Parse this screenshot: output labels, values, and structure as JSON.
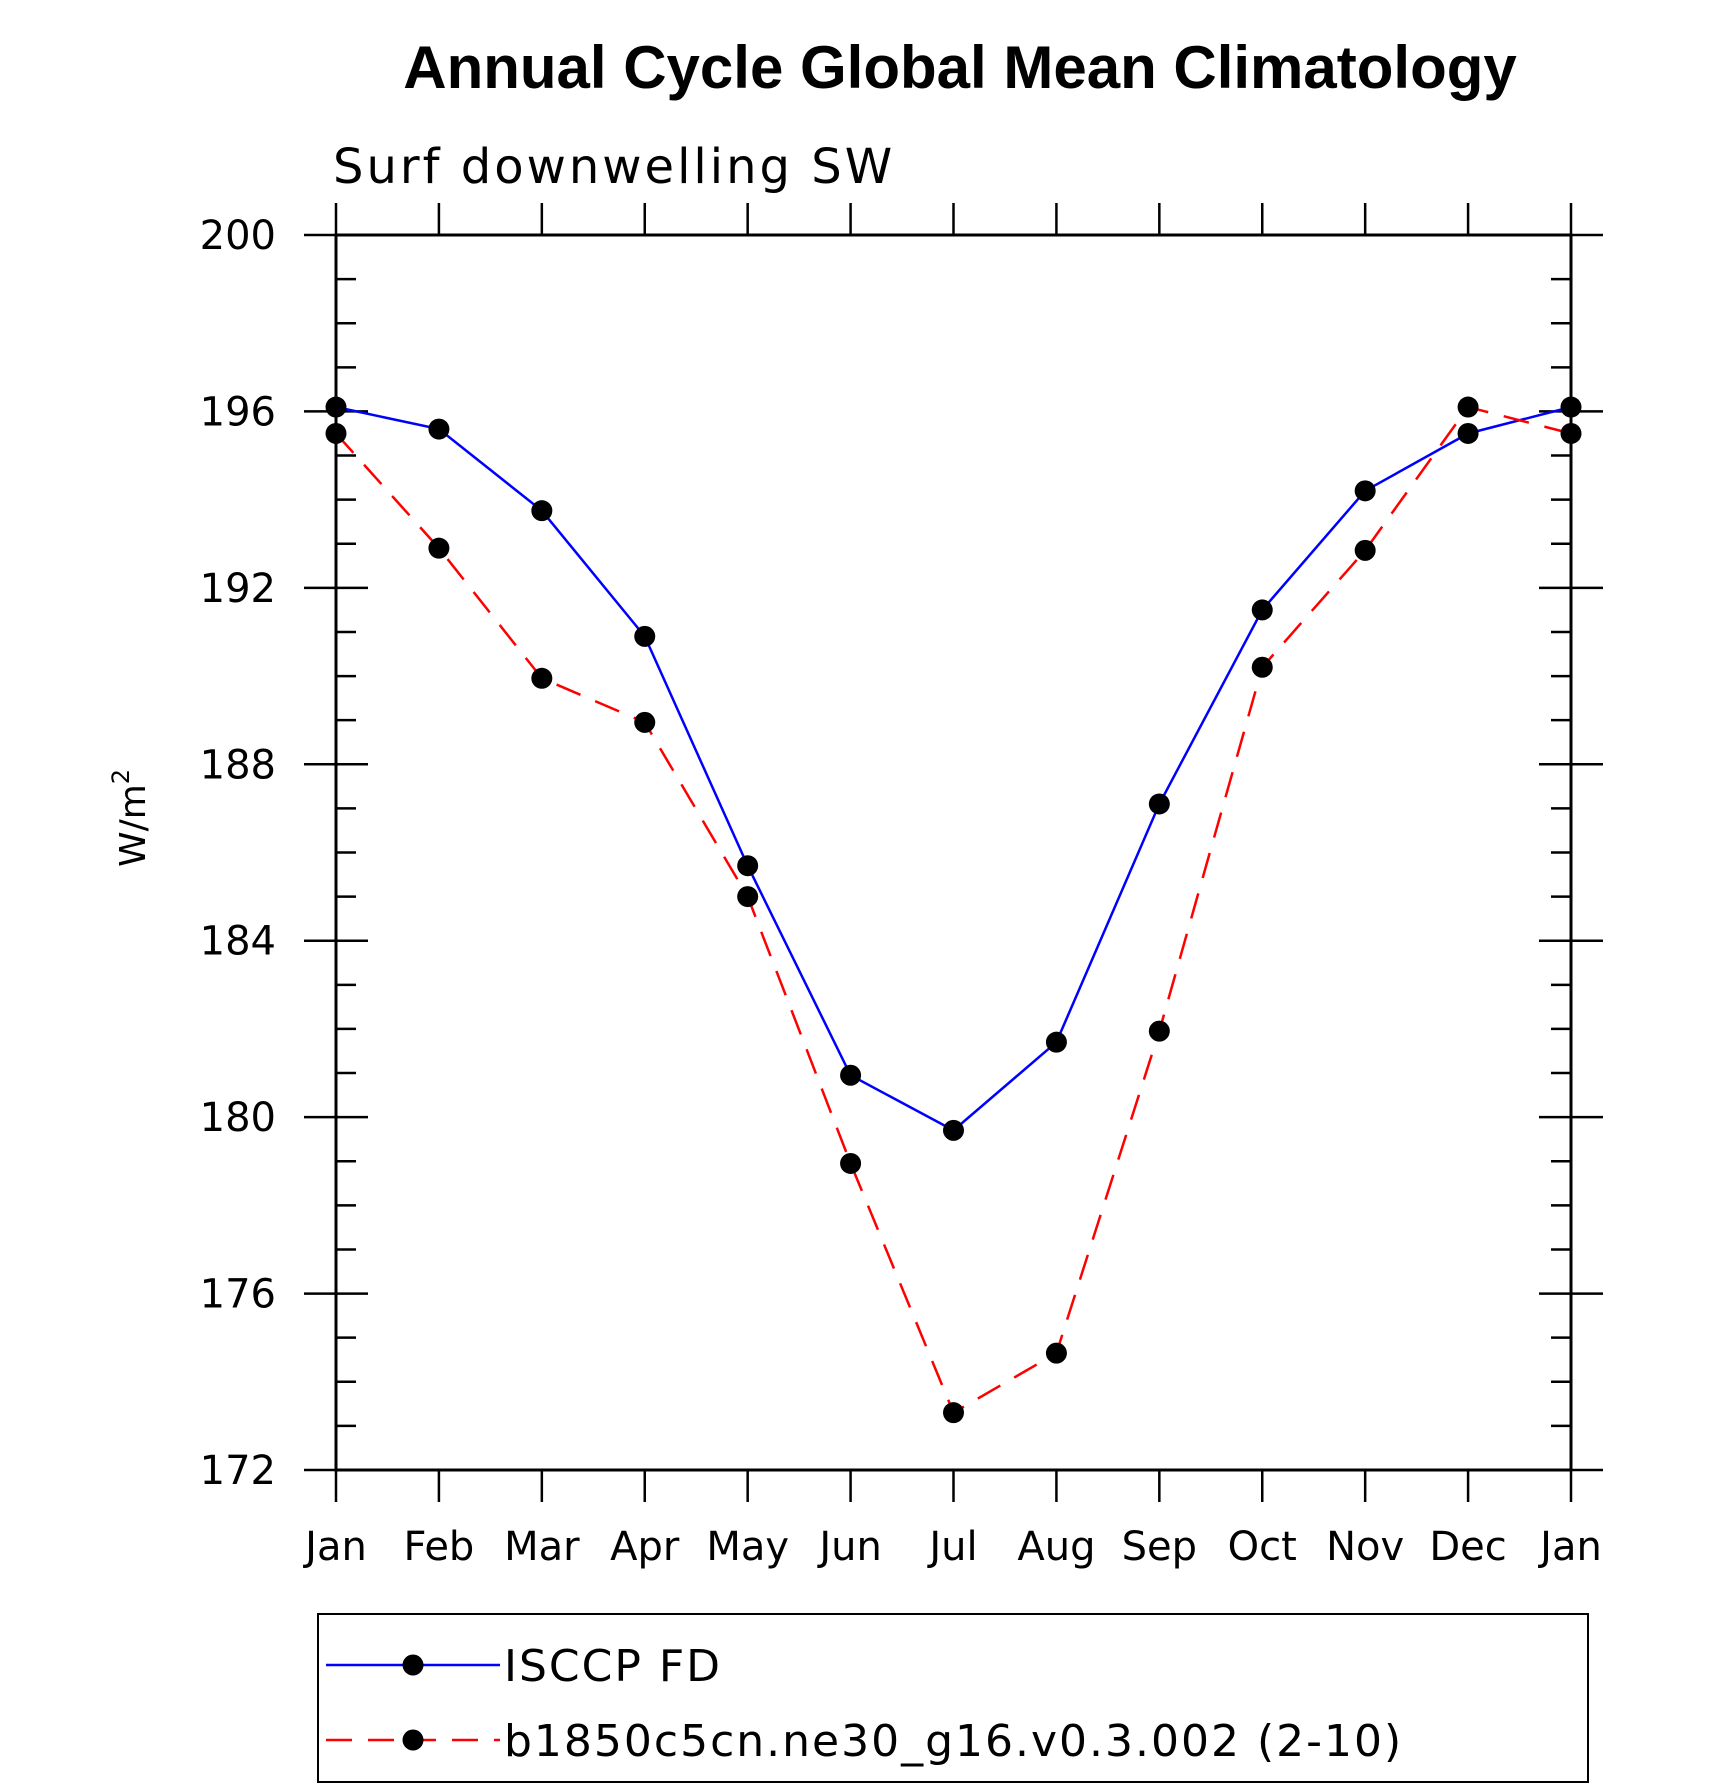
{
  "chart_data": {
    "type": "line",
    "title": "Annual Cycle Global Mean Climatology",
    "subtitle": "Surf downwelling SW",
    "ylabel": "W/m",
    "ylabel_superscript": "2",
    "ylim": [
      172,
      200
    ],
    "yticks": [
      "200",
      "196",
      "192",
      "188",
      "184",
      "180",
      "176",
      "172"
    ],
    "categories": [
      "Jan",
      "Feb",
      "Mar",
      "Apr",
      "May",
      "Jun",
      "Jul",
      "Aug",
      "Sep",
      "Oct",
      "Nov",
      "Dec",
      "Jan"
    ],
    "series": [
      {
        "name": "ISCCP FD",
        "color": "#0000ff",
        "dash": "solid",
        "values": [
          196.1,
          195.6,
          193.75,
          190.9,
          185.7,
          180.95,
          179.7,
          181.7,
          187.1,
          191.5,
          194.2,
          195.5,
          196.1
        ]
      },
      {
        "name": "b1850c5cn.ne30_g16.v0.3.002 (2-10)",
        "color": "#ff0000",
        "dash": "dashed",
        "values": [
          195.5,
          192.9,
          189.95,
          188.95,
          185.0,
          178.95,
          173.3,
          174.65,
          181.95,
          190.2,
          192.85,
          196.1,
          195.5
        ]
      }
    ],
    "legend_position": "bottom"
  }
}
